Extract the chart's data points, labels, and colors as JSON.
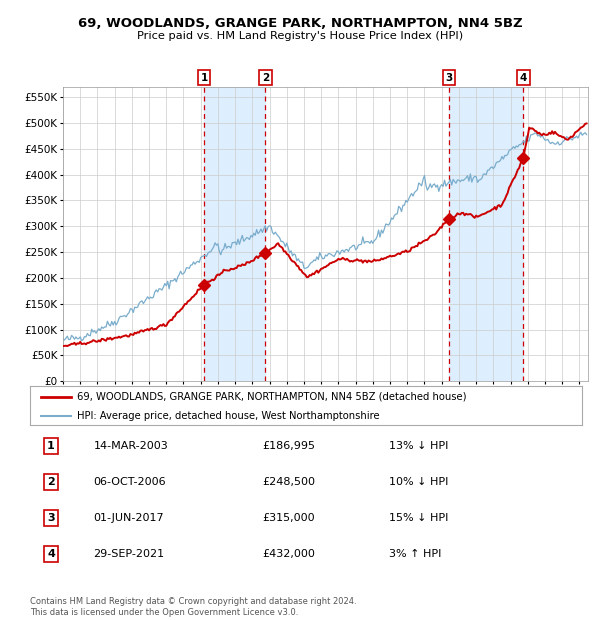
{
  "title": "69, WOODLANDS, GRANGE PARK, NORTHAMPTON, NN4 5BZ",
  "subtitle": "Price paid vs. HM Land Registry's House Price Index (HPI)",
  "hpi_label": "HPI: Average price, detached house, West Northamptonshire",
  "property_label": "69, WOODLANDS, GRANGE PARK, NORTHAMPTON, NN4 5BZ (detached house)",
  "red_color": "#cc0000",
  "blue_color": "#7aadcc",
  "shade_color": "#ddeeff",
  "background_color": "#ffffff",
  "grid_color": "#cccccc",
  "ylim": [
    0,
    570000
  ],
  "yticks": [
    0,
    50000,
    100000,
    150000,
    200000,
    250000,
    300000,
    350000,
    400000,
    450000,
    500000,
    550000
  ],
  "ytick_labels": [
    "£0",
    "£50K",
    "£100K",
    "£150K",
    "£200K",
    "£250K",
    "£300K",
    "£350K",
    "£400K",
    "£450K",
    "£500K",
    "£550K"
  ],
  "sale_dates": [
    2003.19,
    2006.76,
    2017.42,
    2021.74
  ],
  "sale_prices": [
    186995,
    248500,
    315000,
    432000
  ],
  "sale_labels": [
    "1",
    "2",
    "3",
    "4"
  ],
  "table_rows": [
    [
      "1",
      "14-MAR-2003",
      "£186,995",
      "13% ↓ HPI"
    ],
    [
      "2",
      "06-OCT-2006",
      "£248,500",
      "10% ↓ HPI"
    ],
    [
      "3",
      "01-JUN-2017",
      "£315,000",
      "15% ↓ HPI"
    ],
    [
      "4",
      "29-SEP-2021",
      "£432,000",
      "3% ↑ HPI"
    ]
  ],
  "footer": "Contains HM Land Registry data © Crown copyright and database right 2024.\nThis data is licensed under the Open Government Licence v3.0.",
  "xmin": 1995.0,
  "xmax": 2025.5
}
